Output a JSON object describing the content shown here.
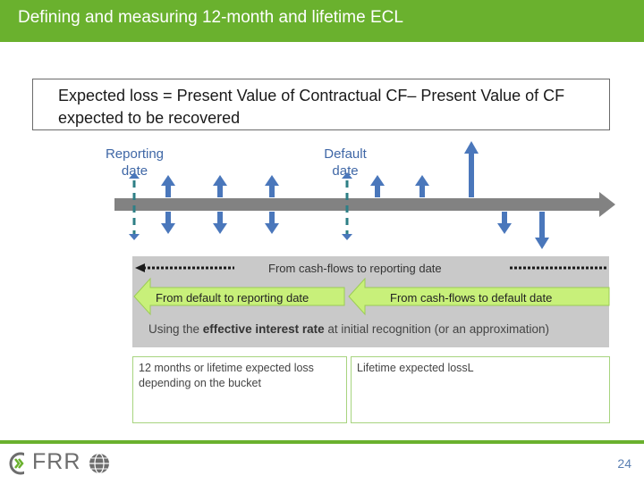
{
  "header": {
    "title": "Defining and measuring 12-month and lifetime ECL"
  },
  "formula": {
    "text": "Expected loss  =  Present Value of Contractual CF– Present Value of CF expected to be recovered"
  },
  "timeline": {
    "reporting_date_label": "Reporting date",
    "default_date_label": "Default date"
  },
  "panel": {
    "cash_flows_to_reporting": "From cash-flows to reporting date",
    "default_to_reporting": "From default to reporting date",
    "cash_flows_to_default": "From cash-flows to default date",
    "eir_prefix": "Using the ",
    "eir_bold": "effective interest rate",
    "eir_suffix": " at initial recognition (or an approximation)"
  },
  "boxes": {
    "twelve_month": "12 months or lifetime expected loss depending on the bucket",
    "lifetime": "Lifetime expected lossL"
  },
  "footer": {
    "logo_text": "FRR",
    "page_number": "24"
  },
  "colors": {
    "brand_green": "#6ab12e",
    "arrow_blue": "#4a77bb",
    "light_green": "#c8f07a"
  }
}
